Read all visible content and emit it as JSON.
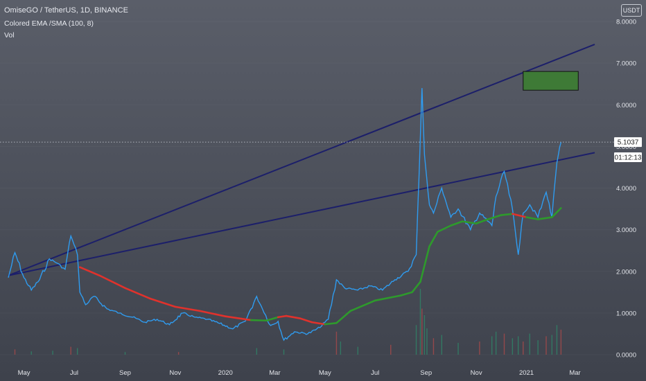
{
  "header": {
    "title": "OmiseGO / TetherUS, 1D, BINANCE",
    "indicator": "Colored EMA /SMA (100, 8)",
    "volume": "Vol",
    "currency_label": "USDT"
  },
  "price_tag": {
    "value": "5.1037",
    "countdown": "01:12:13"
  },
  "colors": {
    "price_line": "#2f9cf0",
    "ema_up": "#2e9a2c",
    "ema_down": "#e0322c",
    "trendline": "#1c1f6a",
    "target_box": "#3e7a36",
    "volume_up": "#2e8a6a",
    "volume_down": "#b04a4a"
  },
  "chart_data": {
    "type": "line",
    "ylim": [
      0,
      8.5
    ],
    "y_ticks": [
      "0.0000",
      "1.0000",
      "2.0000",
      "3.0000",
      "4.0000",
      "5.0000",
      "6.0000",
      "7.0000",
      "8.0000"
    ],
    "x_ticks": [
      "May",
      "Jul",
      "Sep",
      "Nov",
      "2020",
      "Mar",
      "May",
      "Jul",
      "Sep",
      "Nov",
      "2021",
      "Mar"
    ],
    "series": [
      {
        "role": "price",
        "x": [
          "2019-04-12",
          "2019-04-20",
          "2019-05-01",
          "2019-05-10",
          "2019-05-20",
          "2019-06-01",
          "2019-06-10",
          "2019-06-20",
          "2019-06-27",
          "2019-07-05",
          "2019-07-08",
          "2019-07-15",
          "2019-07-25",
          "2019-08-10",
          "2019-08-25",
          "2019-09-10",
          "2019-09-25",
          "2019-10-10",
          "2019-10-25",
          "2019-11-10",
          "2019-11-25",
          "2019-12-10",
          "2019-12-25",
          "2020-01-10",
          "2020-01-25",
          "2020-02-08",
          "2020-02-15",
          "2020-02-25",
          "2020-03-05",
          "2020-03-12",
          "2020-03-25",
          "2020-04-10",
          "2020-04-25",
          "2020-05-05",
          "2020-05-15",
          "2020-05-25",
          "2020-06-10",
          "2020-06-25",
          "2020-07-10",
          "2020-07-25",
          "2020-08-10",
          "2020-08-20",
          "2020-08-27",
          "2020-08-30",
          "2020-09-02",
          "2020-09-05",
          "2020-09-10",
          "2020-09-20",
          "2020-10-01",
          "2020-10-10",
          "2020-10-25",
          "2020-11-05",
          "2020-11-20",
          "2020-11-25",
          "2020-12-05",
          "2020-12-15",
          "2020-12-22",
          "2020-12-28",
          "2021-01-05",
          "2021-01-15",
          "2021-01-25",
          "2021-02-01",
          "2021-02-07",
          "2021-02-12"
        ],
        "values": [
          1.85,
          2.45,
          1.85,
          1.55,
          1.8,
          2.3,
          2.2,
          2.05,
          2.85,
          2.4,
          1.5,
          1.2,
          1.4,
          1.1,
          1.0,
          0.9,
          0.78,
          0.85,
          0.72,
          1.0,
          0.9,
          0.85,
          0.75,
          0.62,
          0.8,
          1.4,
          1.1,
          0.7,
          0.8,
          0.35,
          0.55,
          0.5,
          0.65,
          0.85,
          1.8,
          1.6,
          1.55,
          1.65,
          1.55,
          1.8,
          2.0,
          2.4,
          6.4,
          4.8,
          4.2,
          3.6,
          3.4,
          4.0,
          3.3,
          3.5,
          3.0,
          3.4,
          3.1,
          3.8,
          4.4,
          3.5,
          2.4,
          3.4,
          3.6,
          3.3,
          3.9,
          3.3,
          4.6,
          5.1
        ]
      },
      {
        "role": "ema",
        "x": [
          "2019-07-08",
          "2019-08-01",
          "2019-09-01",
          "2019-10-01",
          "2019-11-01",
          "2019-12-01",
          "2020-01-01",
          "2020-02-01",
          "2020-02-20",
          "2020-03-05",
          "2020-03-15",
          "2020-04-01",
          "2020-04-15",
          "2020-05-01",
          "2020-05-15",
          "2020-06-01",
          "2020-07-01",
          "2020-08-01",
          "2020-08-15",
          "2020-08-25",
          "2020-09-05",
          "2020-09-15",
          "2020-10-01",
          "2020-10-15",
          "2020-11-01",
          "2020-11-15",
          "2020-12-01",
          "2020-12-15",
          "2021-01-01",
          "2021-01-15",
          "2021-02-01",
          "2021-02-12"
        ],
        "values": [
          2.1,
          1.9,
          1.6,
          1.35,
          1.15,
          1.05,
          0.92,
          0.83,
          0.82,
          0.9,
          0.93,
          0.87,
          0.78,
          0.73,
          0.76,
          1.05,
          1.3,
          1.42,
          1.5,
          1.75,
          2.6,
          2.95,
          3.1,
          3.2,
          3.15,
          3.25,
          3.35,
          3.38,
          3.3,
          3.25,
          3.3,
          3.52
        ],
        "colors": [
          "down",
          "down",
          "down",
          "down",
          "down",
          "down",
          "down",
          "down",
          "up",
          "up",
          "down",
          "down",
          "down",
          "down",
          "up",
          "up",
          "up",
          "up",
          "up",
          "up",
          "up",
          "up",
          "up",
          "up",
          "up",
          "up",
          "up",
          "up",
          "down",
          "up",
          "up",
          "up"
        ]
      }
    ],
    "annotations": {
      "trendlines": [
        {
          "from": [
            "2019-04-12",
            1.9
          ],
          "to": [
            "2021-03-25",
            7.45
          ]
        },
        {
          "from": [
            "2019-04-12",
            1.9
          ],
          "to": [
            "2021-03-25",
            4.85
          ]
        }
      ],
      "target_zone": {
        "x": [
          "2020-12-28",
          "2021-03-05"
        ],
        "y": [
          6.35,
          6.8
        ]
      },
      "last_price": 5.1037
    }
  }
}
